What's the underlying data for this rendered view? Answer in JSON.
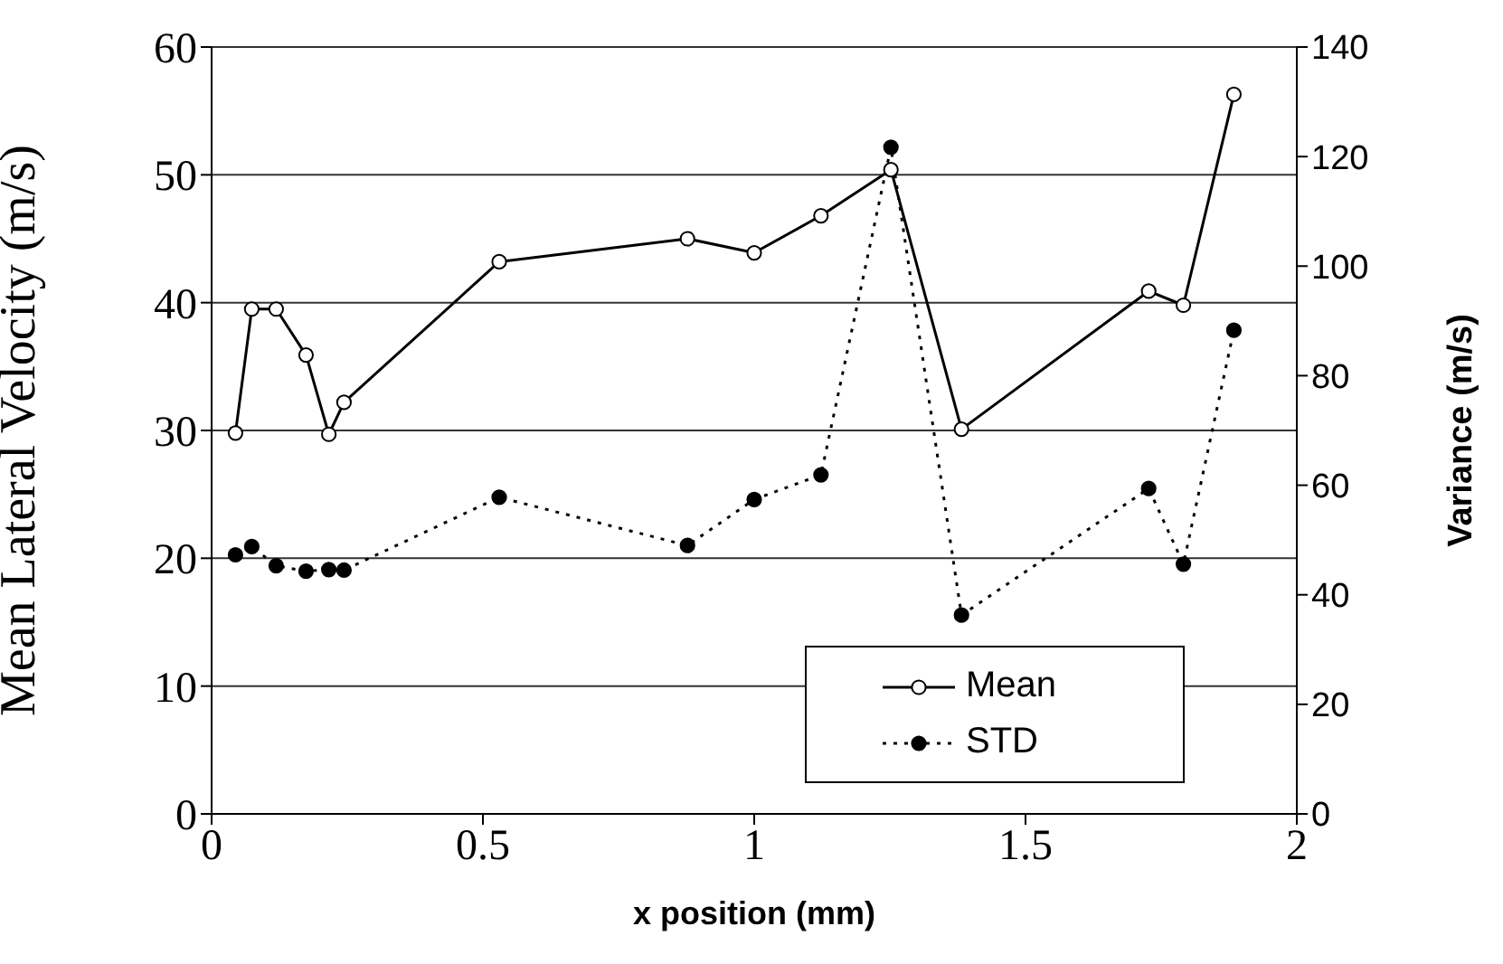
{
  "chart_data": {
    "type": "line",
    "xlabel": "x position (mm)",
    "ylabel": "Mean Lateral Velocity (m/s)",
    "y2label": "Variance (m/s)",
    "x": [
      0.044,
      0.074,
      0.119,
      0.174,
      0.216,
      0.244,
      0.53,
      0.877,
      1.0,
      1.123,
      1.252,
      1.382,
      1.727,
      1.791,
      1.884
    ],
    "series": [
      {
        "name": "Mean",
        "color": "#000000",
        "marker": "circle",
        "line_style": "solid",
        "values": [
          29.8,
          39.5,
          39.5,
          35.9,
          29.7,
          32.2,
          43.2,
          45.0,
          43.9,
          46.8,
          50.4,
          30.1,
          40.9,
          39.8,
          56.3
        ]
      },
      {
        "name": "STD",
        "color": "#000000",
        "marker": "circle",
        "line_style": "dotted",
        "axis": "y2",
        "values": [
          47.3,
          48.8,
          45.3,
          44.3,
          44.6,
          44.5,
          57.8,
          49.0,
          57.4,
          61.9,
          121.7,
          36.3,
          59.4,
          45.6,
          88.3
        ]
      }
    ],
    "xlim": [
      0,
      2
    ],
    "xticks": [
      0,
      0.5,
      1,
      1.5,
      2
    ],
    "ylim": [
      0,
      60
    ],
    "yticks": [
      0,
      10,
      20,
      30,
      40,
      50,
      60
    ],
    "y2lim": [
      0,
      140
    ],
    "y2ticks": [
      0,
      20,
      40,
      60,
      80,
      100,
      120,
      140
    ],
    "grid": "y",
    "legend": "bottom right"
  }
}
